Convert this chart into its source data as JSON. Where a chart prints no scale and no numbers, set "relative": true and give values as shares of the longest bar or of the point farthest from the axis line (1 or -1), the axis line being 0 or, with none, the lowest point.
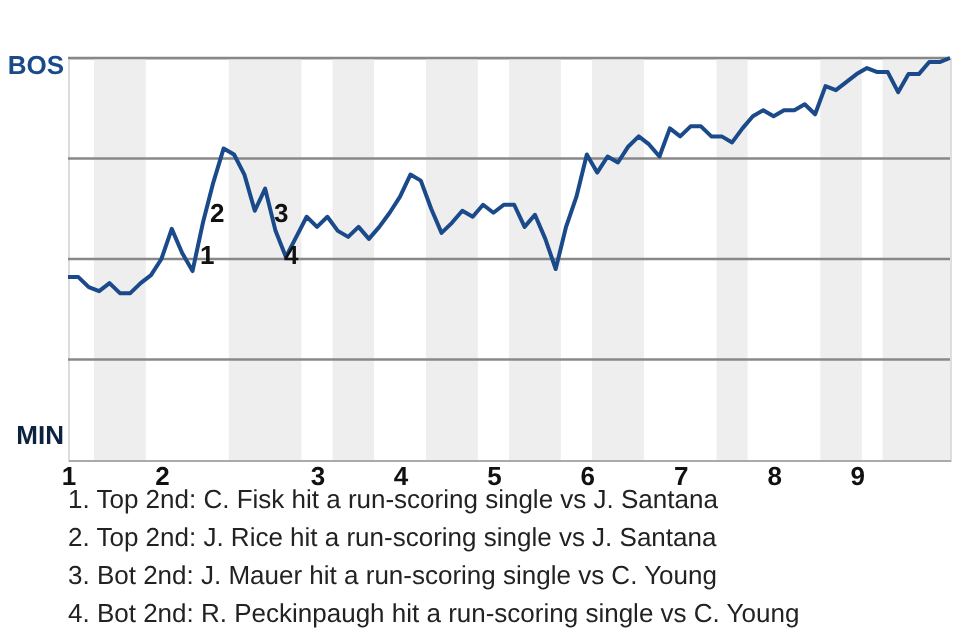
{
  "chart_data": {
    "type": "line",
    "relative": true,
    "categories": [
      "1",
      null,
      null,
      null,
      null,
      null,
      null,
      null,
      null,
      "2",
      null,
      null,
      null,
      null,
      null,
      null,
      null,
      null,
      null,
      null,
      null,
      null,
      null,
      null,
      "3",
      null,
      null,
      null,
      null,
      null,
      null,
      null,
      "4",
      null,
      null,
      null,
      null,
      null,
      null,
      null,
      null,
      "5",
      null,
      null,
      null,
      null,
      null,
      null,
      null,
      null,
      "6",
      null,
      null,
      null,
      null,
      null,
      null,
      null,
      null,
      "7",
      null,
      null,
      null,
      null,
      null,
      null,
      null,
      null,
      "8",
      null,
      null,
      null,
      null,
      null,
      null,
      null,
      "9",
      null,
      null,
      null,
      null,
      null,
      null,
      null,
      null,
      null
    ],
    "series": [
      {
        "color": "#1a4a8a",
        "values": [
          -0.09,
          -0.09,
          -0.14,
          -0.16,
          -0.12,
          -0.17,
          -0.17,
          -0.12,
          -0.08,
          0,
          0.15,
          0.03,
          -0.06,
          0.18,
          0.38,
          0.55,
          0.52,
          0.42,
          0.24,
          0.35,
          0.14,
          0.01,
          0.11,
          0.21,
          0.16,
          0.21,
          0.14,
          0.11,
          0.16,
          0.1,
          0.16,
          0.23,
          0.31,
          0.42,
          0.39,
          0.25,
          0.13,
          0.18,
          0.24,
          0.21,
          0.27,
          0.23,
          0.27,
          0.27,
          0.16,
          0.22,
          0.1,
          -0.05,
          0.16,
          0.31,
          0.52,
          0.43,
          0.51,
          0.48,
          0.56,
          0.61,
          0.57,
          0.51,
          0.65,
          0.61,
          0.66,
          0.66,
          0.61,
          0.61,
          0.58,
          0.65,
          0.71,
          0.74,
          0.71,
          0.74,
          0.74,
          0.77,
          0.72,
          0.86,
          0.84,
          0.88,
          0.92,
          0.95,
          0.93,
          0.93,
          0.83,
          0.92,
          0.92,
          0.98,
          0.98,
          1
        ]
      }
    ],
    "ref_lines": [
      {
        "axis": "y",
        "value": 1,
        "color": "#888888"
      },
      {
        "axis": "y",
        "value": 0.5,
        "color": "#888888"
      },
      {
        "axis": "y",
        "value": 0,
        "color": "#888888"
      },
      {
        "axis": "y",
        "value": -0.5,
        "color": "#888888"
      }
    ],
    "annotations": [
      "BOS",
      "MIN",
      "1",
      "2",
      "3",
      "4",
      "1. Top 2nd: C. Fisk hit a run-scoring single vs J. Santana",
      "2. Top 2nd: J. Rice hit a run-scoring single vs J. Santana",
      "3. Bot 2nd: J. Mauer hit a run-scoring single vs C. Young",
      "4. Bot 2nd: R. Peckinpaugh hit a run-scoring single vs C. Young"
    ]
  }
}
